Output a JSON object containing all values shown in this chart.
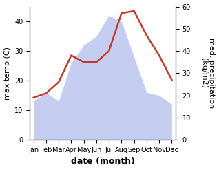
{
  "months": [
    "Jan",
    "Feb",
    "Mar",
    "Apr",
    "May",
    "Jun",
    "Jul",
    "Aug",
    "Sep",
    "Oct",
    "Nov",
    "Dec"
  ],
  "temperature": [
    19,
    21,
    26,
    38,
    35,
    35,
    40,
    57,
    58,
    47,
    38,
    27
  ],
  "precipitation": [
    13,
    16,
    13,
    26,
    32,
    35,
    42,
    40,
    28,
    16,
    15,
    12
  ],
  "temp_color": "#c0392b",
  "precip_fill_color": "#c5cdf0",
  "temp_ylim": [
    0,
    45
  ],
  "precip_ylim": [
    0,
    60
  ],
  "xlabel": "date (month)",
  "ylabel_left": "max temp (C)",
  "ylabel_right": "med. precipitation\n(kg/m2)",
  "xlabel_fontsize": 9,
  "ylabel_fontsize": 8,
  "tick_fontsize": 7
}
